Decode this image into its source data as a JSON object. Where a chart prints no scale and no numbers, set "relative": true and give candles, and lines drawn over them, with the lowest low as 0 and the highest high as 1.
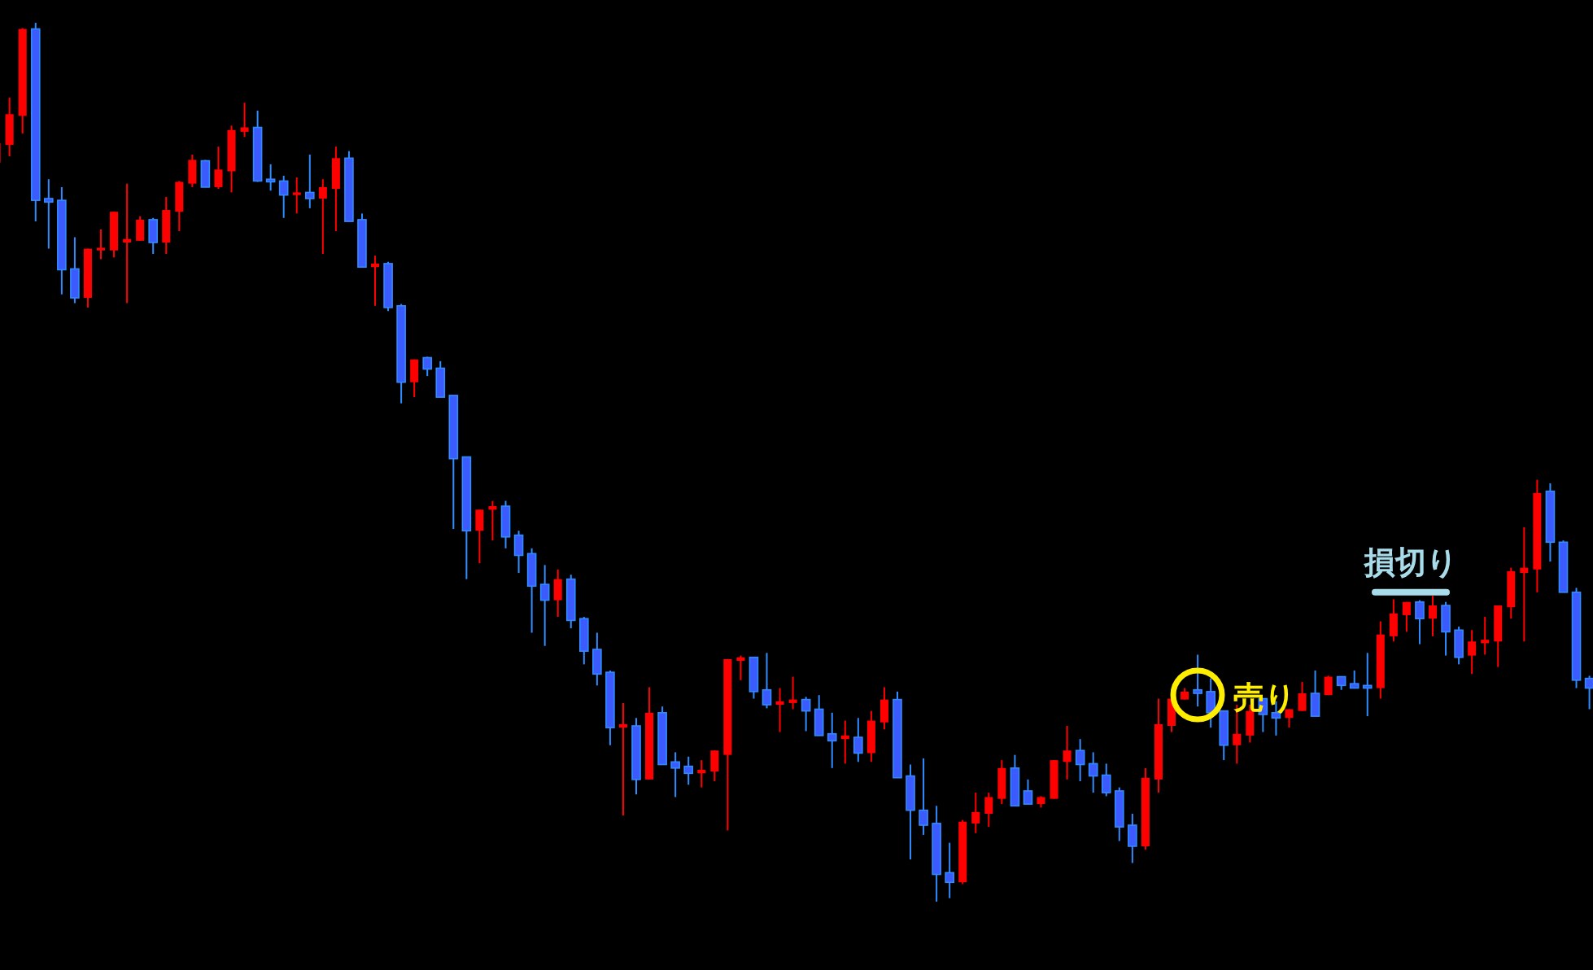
{
  "chart_data": {
    "type": "candlestick",
    "relative": true,
    "categories": [
      null,
      null,
      null,
      null,
      null,
      null,
      null,
      null,
      null,
      null,
      null,
      null,
      null,
      null,
      null,
      null,
      null,
      null,
      null,
      null,
      null,
      null,
      null,
      null,
      null,
      null,
      null,
      null,
      null,
      null,
      null,
      null,
      null,
      null,
      null,
      null,
      null,
      null,
      null,
      null,
      null,
      null,
      null,
      null,
      null,
      null,
      null,
      null,
      null,
      null,
      null,
      null,
      null,
      null,
      null,
      null,
      null,
      null,
      null,
      null,
      null,
      null,
      null,
      null,
      null,
      null,
      null,
      null,
      null,
      null,
      null,
      null,
      null,
      null,
      null,
      null,
      null,
      null,
      null,
      null,
      null,
      null,
      null,
      null,
      null,
      null,
      null,
      null,
      null,
      null,
      null,
      null,
      null,
      null,
      null,
      null,
      null,
      null,
      null,
      null,
      null,
      null,
      null,
      null,
      null,
      null,
      null,
      null,
      null,
      null,
      null,
      null,
      null,
      null,
      null,
      null,
      null,
      null,
      null,
      null,
      null,
      null,
      null
    ],
    "ohlc": [
      [
        0.841,
        0.867,
        0.841,
        0.863
      ],
      [
        0.861,
        0.915,
        0.848,
        0.896
      ],
      [
        0.894,
        0.994,
        0.874,
        0.993
      ],
      [
        0.993,
        1,
        0.774,
        0.798
      ],
      [
        0.8,
        0.822,
        0.743,
        0.796
      ],
      [
        0.798,
        0.813,
        0.691,
        0.719
      ],
      [
        0.72,
        0.756,
        0.681,
        0.687
      ],
      [
        0.687,
        0.743,
        0.676,
        0.743
      ],
      [
        0.741,
        0.765,
        0.731,
        0.744
      ],
      [
        0.741,
        0.785,
        0.733,
        0.785
      ],
      [
        0.75,
        0.817,
        0.681,
        0.754
      ],
      [
        0.752,
        0.78,
        0.752,
        0.776
      ],
      [
        0.776,
        0.778,
        0.737,
        0.75
      ],
      [
        0.75,
        0.802,
        0.737,
        0.787
      ],
      [
        0.785,
        0.82,
        0.763,
        0.819
      ],
      [
        0.817,
        0.85,
        0.813,
        0.844
      ],
      [
        0.843,
        0.844,
        0.813,
        0.813
      ],
      [
        0.813,
        0.859,
        0.811,
        0.833
      ],
      [
        0.831,
        0.883,
        0.807,
        0.878
      ],
      [
        0.876,
        0.909,
        0.87,
        0.881
      ],
      [
        0.881,
        0.9,
        0.819,
        0.82
      ],
      [
        0.822,
        0.839,
        0.809,
        0.819
      ],
      [
        0.82,
        0.826,
        0.778,
        0.804
      ],
      [
        0.804,
        0.824,
        0.783,
        0.807
      ],
      [
        0.807,
        0.85,
        0.789,
        0.8
      ],
      [
        0.8,
        0.822,
        0.737,
        0.813
      ],
      [
        0.811,
        0.859,
        0.763,
        0.846
      ],
      [
        0.846,
        0.854,
        0.774,
        0.774
      ],
      [
        0.776,
        0.783,
        0.722,
        0.722
      ],
      [
        0.722,
        0.735,
        0.678,
        0.726
      ],
      [
        0.726,
        0.728,
        0.672,
        0.676
      ],
      [
        0.678,
        0.68,
        0.567,
        0.591
      ],
      [
        0.591,
        0.617,
        0.574,
        0.617
      ],
      [
        0.619,
        0.62,
        0.598,
        0.606
      ],
      [
        0.607,
        0.615,
        0.574,
        0.574
      ],
      [
        0.576,
        0.576,
        0.424,
        0.504
      ],
      [
        0.506,
        0.506,
        0.367,
        0.422
      ],
      [
        0.422,
        0.446,
        0.385,
        0.446
      ],
      [
        0.446,
        0.456,
        0.411,
        0.45
      ],
      [
        0.45,
        0.456,
        0.402,
        0.415
      ],
      [
        0.417,
        0.422,
        0.374,
        0.394
      ],
      [
        0.396,
        0.402,
        0.306,
        0.359
      ],
      [
        0.361,
        0.383,
        0.291,
        0.343
      ],
      [
        0.343,
        0.378,
        0.324,
        0.367
      ],
      [
        0.367,
        0.372,
        0.311,
        0.32
      ],
      [
        0.322,
        0.324,
        0.27,
        0.285
      ],
      [
        0.287,
        0.306,
        0.246,
        0.259
      ],
      [
        0.261,
        0.263,
        0.178,
        0.198
      ],
      [
        0.198,
        0.226,
        0.098,
        0.202
      ],
      [
        0.2,
        0.209,
        0.122,
        0.139
      ],
      [
        0.139,
        0.244,
        0.139,
        0.215
      ],
      [
        0.215,
        0.222,
        0.156,
        0.156
      ],
      [
        0.159,
        0.17,
        0.119,
        0.152
      ],
      [
        0.154,
        0.165,
        0.133,
        0.146
      ],
      [
        0.146,
        0.161,
        0.13,
        0.15
      ],
      [
        0.148,
        0.172,
        0.137,
        0.172
      ],
      [
        0.167,
        0.276,
        0.081,
        0.276
      ],
      [
        0.274,
        0.28,
        0.252,
        0.278
      ],
      [
        0.278,
        0.278,
        0.231,
        0.239
      ],
      [
        0.241,
        0.283,
        0.22,
        0.224
      ],
      [
        0.224,
        0.243,
        0.193,
        0.228
      ],
      [
        0.226,
        0.256,
        0.219,
        0.23
      ],
      [
        0.23,
        0.233,
        0.194,
        0.217
      ],
      [
        0.219,
        0.235,
        0.189,
        0.189
      ],
      [
        0.191,
        0.215,
        0.152,
        0.183
      ],
      [
        0.185,
        0.206,
        0.157,
        0.189
      ],
      [
        0.187,
        0.209,
        0.159,
        0.169
      ],
      [
        0.169,
        0.217,
        0.159,
        0.206
      ],
      [
        0.204,
        0.244,
        0.196,
        0.23
      ],
      [
        0.23,
        0.239,
        0.141,
        0.141
      ],
      [
        0.143,
        0.156,
        0.048,
        0.104
      ],
      [
        0.104,
        0.163,
        0.076,
        0.087
      ],
      [
        0.089,
        0.109,
        0,
        0.031
      ],
      [
        0.033,
        0.067,
        0.004,
        0.022
      ],
      [
        0.022,
        0.093,
        0.02,
        0.091
      ],
      [
        0.089,
        0.124,
        0.078,
        0.102
      ],
      [
        0.1,
        0.124,
        0.085,
        0.119
      ],
      [
        0.117,
        0.161,
        0.111,
        0.152
      ],
      [
        0.152,
        0.167,
        0.109,
        0.109
      ],
      [
        0.126,
        0.139,
        0.111,
        0.111
      ],
      [
        0.111,
        0.12,
        0.107,
        0.119
      ],
      [
        0.117,
        0.161,
        0.117,
        0.161
      ],
      [
        0.159,
        0.2,
        0.139,
        0.172
      ],
      [
        0.172,
        0.185,
        0.137,
        0.156
      ],
      [
        0.157,
        0.17,
        0.124,
        0.143
      ],
      [
        0.144,
        0.157,
        0.12,
        0.124
      ],
      [
        0.126,
        0.13,
        0.069,
        0.085
      ],
      [
        0.087,
        0.1,
        0.044,
        0.063
      ],
      [
        0.063,
        0.152,
        0.059,
        0.141
      ],
      [
        0.139,
        0.231,
        0.124,
        0.202
      ],
      [
        0.2,
        0.231,
        0.193,
        0.231
      ],
      [
        0.23,
        0.243,
        0.23,
        0.239
      ],
      [
        0.241,
        0.281,
        0.222,
        0.237
      ],
      [
        0.239,
        0.254,
        0.198,
        0.215
      ],
      [
        0.217,
        0.217,
        0.161,
        0.178
      ],
      [
        0.178,
        0.224,
        0.157,
        0.191
      ],
      [
        0.189,
        0.224,
        0.181,
        0.217
      ],
      [
        0.231,
        0.231,
        0.193,
        0.213
      ],
      [
        0.215,
        0.228,
        0.189,
        0.209
      ],
      [
        0.209,
        0.219,
        0.198,
        0.219
      ],
      [
        0.217,
        0.25,
        0.217,
        0.237
      ],
      [
        0.237,
        0.263,
        0.211,
        0.211
      ],
      [
        0.235,
        0.257,
        0.235,
        0.256
      ],
      [
        0.256,
        0.256,
        0.241,
        0.246
      ],
      [
        0.248,
        0.263,
        0.243,
        0.243
      ],
      [
        0.246,
        0.283,
        0.211,
        0.243
      ],
      [
        0.243,
        0.319,
        0.231,
        0.304
      ],
      [
        0.302,
        0.344,
        0.296,
        0.328
      ],
      [
        0.326,
        0.341,
        0.307,
        0.341
      ],
      [
        0.341,
        0.343,
        0.293,
        0.322
      ],
      [
        0.322,
        0.348,
        0.302,
        0.337
      ],
      [
        0.337,
        0.341,
        0.28,
        0.307
      ],
      [
        0.309,
        0.313,
        0.27,
        0.278
      ],
      [
        0.28,
        0.309,
        0.259,
        0.296
      ],
      [
        0.294,
        0.324,
        0.281,
        0.298
      ],
      [
        0.296,
        0.337,
        0.267,
        0.337
      ],
      [
        0.335,
        0.38,
        0.322,
        0.376
      ],
      [
        0.374,
        0.426,
        0.296,
        0.38
      ],
      [
        0.378,
        0.48,
        0.352,
        0.465
      ],
      [
        0.467,
        0.476,
        0.387,
        0.409
      ],
      [
        0.409,
        0.411,
        0.352,
        0.352
      ],
      [
        0.352,
        0.357,
        0.243,
        0.252
      ],
      [
        0.254,
        0.257,
        0.219,
        0.243
      ]
    ],
    "colors": [
      "#ff0000",
      "#ff0000",
      "#ff0000",
      "#3b5bff",
      "#3b5bff",
      "#3b5bff",
      "#3b5bff",
      "#ff0000",
      "#ff0000",
      "#ff0000",
      "#ff0000",
      "#ff0000",
      "#3b5bff",
      "#ff0000",
      "#ff0000",
      "#ff0000",
      "#3b5bff",
      "#ff0000",
      "#ff0000",
      "#ff0000",
      "#3b5bff",
      "#3b5bff",
      "#3b5bff",
      "#ff0000",
      "#3b5bff",
      "#ff0000",
      "#ff0000",
      "#3b5bff",
      "#3b5bff",
      "#ff0000",
      "#3b5bff",
      "#3b5bff",
      "#ff0000",
      "#3b5bff",
      "#3b5bff",
      "#3b5bff",
      "#3b5bff",
      "#ff0000",
      "#ff0000",
      "#3b5bff",
      "#3b5bff",
      "#3b5bff",
      "#3b5bff",
      "#ff0000",
      "#3b5bff",
      "#3b5bff",
      "#3b5bff",
      "#3b5bff",
      "#ff0000",
      "#3b5bff",
      "#ff0000",
      "#3b5bff",
      "#3b5bff",
      "#3b5bff",
      "#ff0000",
      "#ff0000",
      "#ff0000",
      "#ff0000",
      "#3b5bff",
      "#3b5bff",
      "#ff0000",
      "#ff0000",
      "#3b5bff",
      "#3b5bff",
      "#3b5bff",
      "#ff0000",
      "#3b5bff",
      "#ff0000",
      "#ff0000",
      "#3b5bff",
      "#3b5bff",
      "#3b5bff",
      "#3b5bff",
      "#3b5bff",
      "#ff0000",
      "#ff0000",
      "#ff0000",
      "#ff0000",
      "#3b5bff",
      "#3b5bff",
      "#ff0000",
      "#ff0000",
      "#ff0000",
      "#3b5bff",
      "#3b5bff",
      "#3b5bff",
      "#3b5bff",
      "#3b5bff",
      "#ff0000",
      "#ff0000",
      "#ff0000",
      "#ff0000",
      "#3b5bff",
      "#3b5bff",
      "#3b5bff",
      "#ff0000",
      "#ff0000",
      "#3b5bff",
      "#3b5bff",
      "#ff0000",
      "#ff0000",
      "#3b5bff",
      "#ff0000",
      "#3b5bff",
      "#3b5bff",
      "#3b5bff",
      "#ff0000",
      "#ff0000",
      "#ff0000",
      "#3b5bff",
      "#ff0000",
      "#3b5bff",
      "#3b5bff",
      "#ff0000",
      "#ff0000",
      "#ff0000",
      "#ff0000",
      "#ff0000",
      "#ff0000",
      "#3b5bff",
      "#3b5bff",
      "#3b5bff",
      "#3b5bff"
    ],
    "annotations": [
      {
        "text": "売り",
        "y": 0.237
      }
    ],
    "ref_lines": [
      {
        "axis": "y",
        "value": 0.352,
        "label": "損切り",
        "color": "#a8dcea"
      }
    ]
  }
}
